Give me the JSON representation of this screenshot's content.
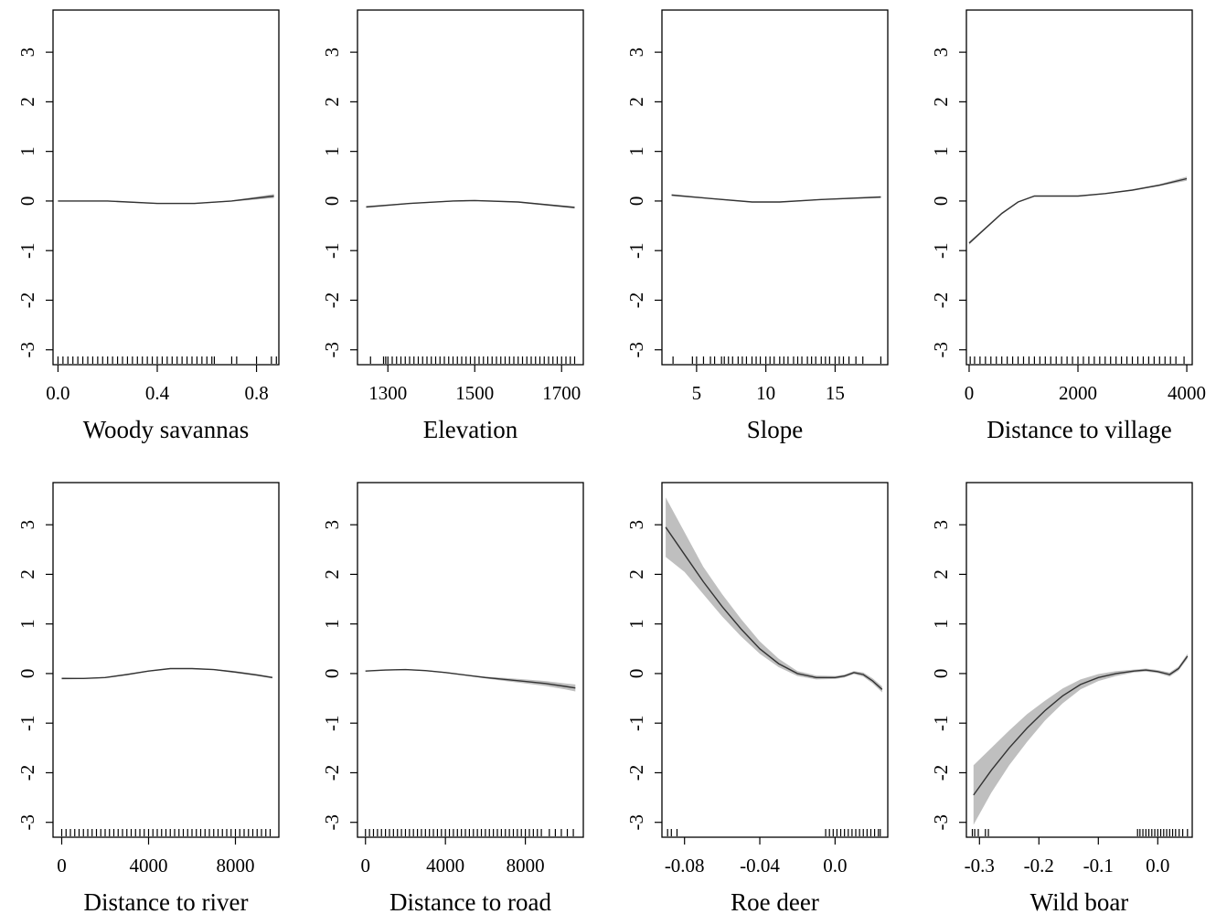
{
  "chart_data": [
    {
      "type": "line",
      "xlabel": "Woody savannas",
      "xlim": [
        -0.02,
        0.89
      ],
      "ylim": [
        -3.3,
        3.85
      ],
      "xticks": [
        0.0,
        0.4,
        0.8
      ],
      "xtick_labels": [
        "0.0",
        "0.4",
        "0.8"
      ],
      "yticks": [
        -3,
        -2,
        -1,
        0,
        1,
        2,
        3
      ],
      "ytick_labels": [
        "-3",
        "-2",
        "-1",
        "0",
        "1",
        "2",
        "3"
      ],
      "series": [
        {
          "x": [
            0.0,
            0.2,
            0.4,
            0.55,
            0.7,
            0.87
          ],
          "y": [
            0.0,
            0.0,
            -0.05,
            -0.05,
            0.0,
            0.1
          ],
          "lower": [
            -0.01,
            -0.01,
            -0.06,
            -0.06,
            -0.01,
            0.06
          ],
          "upper": [
            0.01,
            0.01,
            -0.04,
            -0.04,
            0.01,
            0.14
          ]
        }
      ],
      "rug": [
        0.0,
        0.02,
        0.04,
        0.06,
        0.08,
        0.1,
        0.12,
        0.14,
        0.16,
        0.18,
        0.2,
        0.22,
        0.24,
        0.26,
        0.28,
        0.3,
        0.32,
        0.34,
        0.36,
        0.38,
        0.4,
        0.42,
        0.44,
        0.46,
        0.48,
        0.5,
        0.52,
        0.54,
        0.56,
        0.58,
        0.6,
        0.62,
        0.63,
        0.7,
        0.72,
        0.8,
        0.86,
        0.88
      ],
      "grid": false
    },
    {
      "type": "line",
      "xlabel": "Elevation",
      "xlim": [
        1230,
        1750
      ],
      "ylim": [
        -3.3,
        3.85
      ],
      "xticks": [
        1300,
        1500,
        1700
      ],
      "xtick_labels": [
        "1300",
        "1500",
        "1700"
      ],
      "yticks": [
        -3,
        -2,
        -1,
        0,
        1,
        2,
        3
      ],
      "ytick_labels": [
        "-3",
        "-2",
        "-1",
        "0",
        "1",
        "2",
        "3"
      ],
      "series": [
        {
          "x": [
            1250,
            1350,
            1450,
            1500,
            1600,
            1730
          ],
          "y": [
            -0.12,
            -0.05,
            0.0,
            0.01,
            -0.02,
            -0.13
          ],
          "lower": [
            -0.14,
            -0.06,
            -0.01,
            0.0,
            -0.03,
            -0.15
          ],
          "upper": [
            -0.1,
            -0.04,
            0.01,
            0.02,
            -0.01,
            -0.11
          ]
        }
      ],
      "rug": [
        1260,
        1290,
        1295,
        1300,
        1310,
        1320,
        1330,
        1340,
        1350,
        1360,
        1370,
        1380,
        1390,
        1400,
        1410,
        1420,
        1430,
        1440,
        1450,
        1460,
        1470,
        1480,
        1490,
        1500,
        1510,
        1520,
        1530,
        1540,
        1550,
        1560,
        1570,
        1580,
        1590,
        1600,
        1610,
        1620,
        1630,
        1640,
        1650,
        1660,
        1670,
        1680,
        1690,
        1700,
        1710,
        1720,
        1730
      ],
      "grid": false
    },
    {
      "type": "line",
      "xlabel": "Slope",
      "xlim": [
        2.5,
        18.8
      ],
      "ylim": [
        -3.3,
        3.85
      ],
      "xticks": [
        5,
        10,
        15
      ],
      "xtick_labels": [
        "5",
        "10",
        "15"
      ],
      "yticks": [
        -3,
        -2,
        -1,
        0,
        1,
        2,
        3
      ],
      "ytick_labels": [
        "-3",
        "-2",
        "-1",
        "0",
        "1",
        "2",
        "3"
      ],
      "series": [
        {
          "x": [
            3.2,
            6,
            9,
            11,
            14,
            18.3
          ],
          "y": [
            0.12,
            0.05,
            -0.02,
            -0.02,
            0.03,
            0.08
          ],
          "lower": [
            0.1,
            0.04,
            -0.03,
            -0.03,
            0.02,
            0.06
          ],
          "upper": [
            0.14,
            0.06,
            -0.01,
            -0.01,
            0.04,
            0.1
          ]
        }
      ],
      "rug": [
        3.3,
        4.7,
        5.0,
        5.5,
        6.0,
        6.3,
        6.8,
        7.0,
        7.3,
        7.6,
        8.0,
        8.3,
        8.6,
        9.0,
        9.3,
        9.6,
        10.0,
        10.3,
        10.6,
        11.0,
        11.3,
        11.6,
        12.0,
        12.3,
        12.6,
        13.0,
        13.3,
        13.6,
        14.0,
        14.3,
        14.6,
        15.0,
        15.3,
        15.6,
        16.0,
        16.5,
        17.0,
        18.3
      ],
      "grid": false
    },
    {
      "type": "line",
      "xlabel": "Distance to village",
      "xlim": [
        -50,
        4100
      ],
      "ylim": [
        -3.3,
        3.85
      ],
      "xticks": [
        0,
        2000,
        4000
      ],
      "xtick_labels": [
        "0",
        "2000",
        "4000"
      ],
      "yticks": [
        -3,
        -2,
        -1,
        0,
        1,
        2,
        3
      ],
      "ytick_labels": [
        "-3",
        "-2",
        "-1",
        "0",
        "1",
        "2",
        "3"
      ],
      "series": [
        {
          "x": [
            0,
            300,
            600,
            900,
            1200,
            1600,
            2000,
            2500,
            3000,
            3500,
            4000
          ],
          "y": [
            -0.85,
            -0.55,
            -0.25,
            -0.02,
            0.1,
            0.1,
            0.1,
            0.15,
            0.22,
            0.32,
            0.45
          ],
          "lower": [
            -0.88,
            -0.57,
            -0.27,
            -0.03,
            0.09,
            0.09,
            0.09,
            0.14,
            0.21,
            0.3,
            0.41
          ],
          "upper": [
            -0.82,
            -0.53,
            -0.23,
            -0.01,
            0.11,
            0.11,
            0.11,
            0.16,
            0.23,
            0.34,
            0.49
          ]
        }
      ],
      "rug": [
        20,
        100,
        200,
        300,
        400,
        500,
        600,
        700,
        800,
        900,
        1000,
        1100,
        1200,
        1300,
        1400,
        1500,
        1600,
        1700,
        1800,
        1900,
        2000,
        2100,
        2200,
        2300,
        2400,
        2500,
        2600,
        2700,
        2800,
        2900,
        3000,
        3100,
        3200,
        3300,
        3400,
        3500,
        3600,
        3700,
        3800,
        3950
      ],
      "grid": false
    },
    {
      "type": "line",
      "xlabel": "Distance to river",
      "xlim": [
        -400,
        10000
      ],
      "ylim": [
        -3.3,
        3.85
      ],
      "xticks": [
        0,
        4000,
        8000
      ],
      "xtick_labels": [
        "0",
        "4000",
        "8000"
      ],
      "yticks": [
        -3,
        -2,
        -1,
        0,
        1,
        2,
        3
      ],
      "ytick_labels": [
        "-3",
        "-2",
        "-1",
        "0",
        "1",
        "2",
        "3"
      ],
      "series": [
        {
          "x": [
            0,
            1000,
            2000,
            3000,
            4000,
            5000,
            6000,
            7000,
            8000,
            9000,
            9700
          ],
          "y": [
            -0.1,
            -0.1,
            -0.08,
            -0.02,
            0.05,
            0.1,
            0.1,
            0.08,
            0.03,
            -0.03,
            -0.08
          ],
          "lower": [
            -0.12,
            -0.11,
            -0.09,
            -0.03,
            0.04,
            0.09,
            0.09,
            0.07,
            0.01,
            -0.05,
            -0.1
          ],
          "upper": [
            -0.08,
            -0.09,
            -0.07,
            -0.01,
            0.06,
            0.11,
            0.11,
            0.09,
            0.05,
            -0.01,
            -0.06
          ]
        }
      ],
      "rug": [
        0,
        200,
        400,
        600,
        800,
        1000,
        1200,
        1400,
        1600,
        1800,
        2000,
        2200,
        2400,
        2600,
        2800,
        3000,
        3200,
        3400,
        3600,
        3800,
        4000,
        4200,
        4400,
        4600,
        4800,
        5000,
        5200,
        5400,
        5600,
        5800,
        6000,
        6200,
        6400,
        6600,
        6800,
        7000,
        7200,
        7400,
        7600,
        7800,
        8000,
        8200,
        8400,
        8600,
        8800,
        9000,
        9200,
        9400,
        9600
      ],
      "grid": false
    },
    {
      "type": "line",
      "xlabel": "Distance to road",
      "xlim": [
        -400,
        10900
      ],
      "ylim": [
        -3.3,
        3.85
      ],
      "xticks": [
        0,
        4000,
        8000
      ],
      "xtick_labels": [
        "0",
        "4000",
        "8000"
      ],
      "yticks": [
        -3,
        -2,
        -1,
        0,
        1,
        2,
        3
      ],
      "ytick_labels": [
        "-3",
        "-2",
        "-1",
        "0",
        "1",
        "2",
        "3"
      ],
      "series": [
        {
          "x": [
            0,
            1000,
            2000,
            3000,
            4000,
            5000,
            6000,
            7000,
            8000,
            9000,
            10000,
            10500
          ],
          "y": [
            0.05,
            0.07,
            0.08,
            0.06,
            0.02,
            -0.03,
            -0.08,
            -0.12,
            -0.16,
            -0.2,
            -0.26,
            -0.29
          ],
          "lower": [
            0.04,
            0.06,
            0.07,
            0.05,
            0.01,
            -0.04,
            -0.1,
            -0.15,
            -0.2,
            -0.25,
            -0.32,
            -0.36
          ],
          "upper": [
            0.06,
            0.08,
            0.09,
            0.07,
            0.03,
            -0.02,
            -0.06,
            -0.09,
            -0.12,
            -0.15,
            -0.2,
            -0.22
          ]
        }
      ],
      "rug": [
        0,
        200,
        400,
        600,
        800,
        1000,
        1200,
        1400,
        1600,
        1800,
        2000,
        2200,
        2400,
        2600,
        2800,
        3000,
        3200,
        3400,
        3600,
        3800,
        4000,
        4200,
        4400,
        4600,
        4800,
        5000,
        5200,
        5400,
        5600,
        5800,
        6000,
        6200,
        6400,
        6600,
        6800,
        7000,
        7200,
        7400,
        7600,
        7800,
        8000,
        8200,
        8400,
        8600,
        8800,
        9200,
        9500,
        9800,
        10100,
        10400
      ],
      "grid": false
    },
    {
      "type": "line",
      "xlabel": "Roe deer",
      "xlim": [
        -0.092,
        0.028
      ],
      "ylim": [
        -3.3,
        3.85
      ],
      "xticks": [
        -0.08,
        -0.04,
        0.0
      ],
      "xtick_labels": [
        "-0.08",
        "-0.04",
        "0.0"
      ],
      "yticks": [
        -3,
        -2,
        -1,
        0,
        1,
        2,
        3
      ],
      "ytick_labels": [
        "-3",
        "-2",
        "-1",
        "0",
        "1",
        "2",
        "3"
      ],
      "series": [
        {
          "x": [
            -0.09,
            -0.08,
            -0.07,
            -0.06,
            -0.05,
            -0.04,
            -0.03,
            -0.02,
            -0.01,
            0.0,
            0.005,
            0.01,
            0.015,
            0.02,
            0.025
          ],
          "y": [
            2.95,
            2.4,
            1.85,
            1.35,
            0.9,
            0.5,
            0.2,
            0.0,
            -0.08,
            -0.08,
            -0.05,
            0.02,
            -0.02,
            -0.15,
            -0.32
          ],
          "lower": [
            2.35,
            2.05,
            1.6,
            1.15,
            0.75,
            0.4,
            0.13,
            -0.05,
            -0.12,
            -0.11,
            -0.08,
            -0.01,
            -0.06,
            -0.2,
            -0.38
          ],
          "upper": [
            3.55,
            2.85,
            2.15,
            1.6,
            1.1,
            0.65,
            0.3,
            0.05,
            -0.04,
            -0.05,
            -0.02,
            0.05,
            0.02,
            -0.1,
            -0.26
          ]
        }
      ],
      "rug": [
        -0.089,
        -0.087,
        -0.084,
        -0.005,
        -0.003,
        -0.001,
        0.001,
        0.003,
        0.005,
        0.007,
        0.009,
        0.011,
        0.013,
        0.015,
        0.017,
        0.019,
        0.021,
        0.023,
        0.024
      ],
      "grid": false
    },
    {
      "type": "line",
      "xlabel": "Wild boar",
      "xlim": [
        -0.322,
        0.058
      ],
      "ylim": [
        -3.3,
        3.85
      ],
      "xticks": [
        -0.3,
        -0.2,
        -0.1,
        0.0
      ],
      "xtick_labels": [
        "-0.3",
        "-0.2",
        "-0.1",
        "0.0"
      ],
      "yticks": [
        -3,
        -2,
        -1,
        0,
        1,
        2,
        3
      ],
      "ytick_labels": [
        "-3",
        "-2",
        "-1",
        "0",
        "1",
        "2",
        "3"
      ],
      "series": [
        {
          "x": [
            -0.31,
            -0.28,
            -0.25,
            -0.22,
            -0.19,
            -0.16,
            -0.13,
            -0.1,
            -0.07,
            -0.04,
            -0.02,
            0.0,
            0.02,
            0.035,
            0.05
          ],
          "y": [
            -2.45,
            -1.95,
            -1.5,
            -1.1,
            -0.75,
            -0.45,
            -0.22,
            -0.08,
            0.0,
            0.05,
            0.07,
            0.04,
            -0.02,
            0.1,
            0.35
          ],
          "lower": [
            -3.05,
            -2.4,
            -1.85,
            -1.38,
            -0.95,
            -0.6,
            -0.32,
            -0.15,
            -0.05,
            0.02,
            0.04,
            0.01,
            -0.06,
            0.06,
            0.3
          ],
          "upper": [
            -1.85,
            -1.5,
            -1.15,
            -0.82,
            -0.55,
            -0.3,
            -0.12,
            -0.01,
            0.05,
            0.08,
            0.1,
            0.07,
            0.02,
            0.14,
            0.4
          ]
        }
      ],
      "rug": [
        -0.312,
        -0.308,
        -0.302,
        -0.29,
        -0.285,
        -0.034,
        -0.03,
        -0.025,
        -0.02,
        -0.015,
        -0.01,
        -0.005,
        0.0,
        0.005,
        0.01,
        0.015,
        0.02,
        0.025,
        0.03,
        0.036,
        0.042,
        0.05
      ],
      "grid": false
    }
  ],
  "colors": {
    "line": "#333333",
    "band": "#bfbfbf",
    "axis": "#000000",
    "rug": "#000000"
  }
}
